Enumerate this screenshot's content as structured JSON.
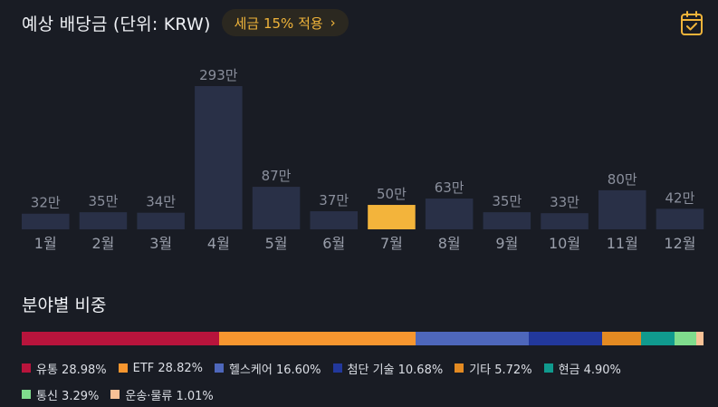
{
  "header": {
    "title": "예상 배당금 (단위: KRW)",
    "tax_badge": "세금 15% 적용",
    "chevron_glyph": "›",
    "calendar_icon": "calendar-check-icon"
  },
  "chart_data": {
    "type": "bar",
    "categories": [
      "1월",
      "2월",
      "3월",
      "4월",
      "5월",
      "6월",
      "7월",
      "8월",
      "9월",
      "10월",
      "11월",
      "12월"
    ],
    "values": [
      32,
      35,
      34,
      293,
      87,
      37,
      50,
      63,
      35,
      33,
      80,
      42
    ],
    "value_labels": [
      "32만",
      "35만",
      "34만",
      "293만",
      "87만",
      "37만",
      "50만",
      "63만",
      "35만",
      "33만",
      "80만",
      "42만"
    ],
    "highlight_index": 6,
    "bar_color": "#293047",
    "highlight_color": "#f3b43b",
    "ylim": [
      0,
      293
    ],
    "grid": false
  },
  "sector": {
    "title": "분야별 비중",
    "items": [
      {
        "label": "유통 28.98%",
        "pct": 28.98,
        "color": "#b8143c"
      },
      {
        "label": "ETF 28.82%",
        "pct": 28.82,
        "color": "#f7962f"
      },
      {
        "label": "헬스케어 16.60%",
        "pct": 16.6,
        "color": "#4e67bb"
      },
      {
        "label": "첨단 기술 10.68%",
        "pct": 10.68,
        "color": "#22389c"
      },
      {
        "label": "기타 5.72%",
        "pct": 5.72,
        "color": "#e38a22"
      },
      {
        "label": "현금 4.90%",
        "pct": 4.9,
        "color": "#109a8e"
      },
      {
        "label": "통신 3.29%",
        "pct": 3.29,
        "color": "#7fdc8d"
      },
      {
        "label": "운송·물류 1.01%",
        "pct": 1.01,
        "color": "#f8c196"
      }
    ]
  }
}
